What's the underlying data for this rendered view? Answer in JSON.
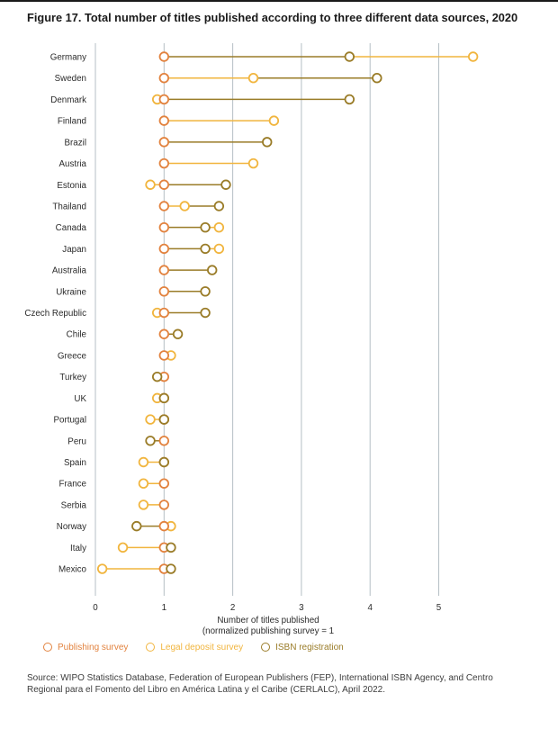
{
  "title": "Figure 17. Total number of titles published according to three different data sources, 2020",
  "source": "Source: WIPO Statistics Database, Federation of European Publishers (FEP), International ISBN Agency, and Centro Regional para el Fomento del Libro en América Latina y el Caribe (CERLALC), April 2022.",
  "colors": {
    "publishing_survey": "#e2823e",
    "legal_deposit_survey": "#f1b53e",
    "isbn_registration": "#9a7c28",
    "grid": "#b5bfc5",
    "text": "#2b2b2b"
  },
  "chart_data": {
    "type": "scatter",
    "subtype": "dumbbell-dot-plot",
    "title": "Figure 17. Total number of titles published according to three different data sources, 2020",
    "xlabel": "Number of titles published",
    "xlabel_line2": "(normalized publishing survey = 1",
    "x_ticks": [
      0,
      1,
      2,
      3,
      4,
      5
    ],
    "xlim": [
      0,
      5.9
    ],
    "grid": "vertical",
    "legend_position": "bottom",
    "categories": [
      "Germany",
      "Sweden",
      "Denmark",
      "Finland",
      "Brazil",
      "Austria",
      "Estonia",
      "Thailand",
      "Canada",
      "Japan",
      "Australia",
      "Ukraine",
      "Czech Republic",
      "Chile",
      "Greece",
      "Turkey",
      "UK",
      "Portugal",
      "Peru",
      "Spain",
      "France",
      "Serbia",
      "Norway",
      "Italy",
      "Mexico"
    ],
    "series": [
      {
        "name": "Publishing survey",
        "color": "#e2823e",
        "values": [
          1,
          1,
          1,
          1,
          1,
          1,
          1,
          1,
          1,
          1,
          1,
          1,
          1,
          1,
          1,
          1,
          1,
          1,
          1,
          1,
          1,
          1,
          1,
          1,
          1
        ]
      },
      {
        "name": "Legal deposit survey",
        "color": "#f1b53e",
        "values": [
          5.5,
          2.3,
          0.9,
          2.6,
          null,
          2.3,
          0.8,
          1.3,
          1.8,
          1.8,
          null,
          null,
          0.9,
          null,
          1.1,
          null,
          0.9,
          0.8,
          null,
          0.7,
          0.7,
          0.7,
          1.1,
          0.4,
          0.1
        ]
      },
      {
        "name": "ISBN registration",
        "color": "#9a7c28",
        "values": [
          3.7,
          4.1,
          3.7,
          null,
          2.5,
          null,
          1.9,
          1.8,
          1.6,
          1.6,
          1.7,
          1.6,
          1.6,
          1.2,
          null,
          0.9,
          1.0,
          1.0,
          0.8,
          1.0,
          null,
          null,
          0.6,
          1.1,
          1.1
        ]
      }
    ],
    "x_ticks_labels": [
      "0",
      "1",
      "2",
      "3",
      "4",
      "5"
    ]
  }
}
